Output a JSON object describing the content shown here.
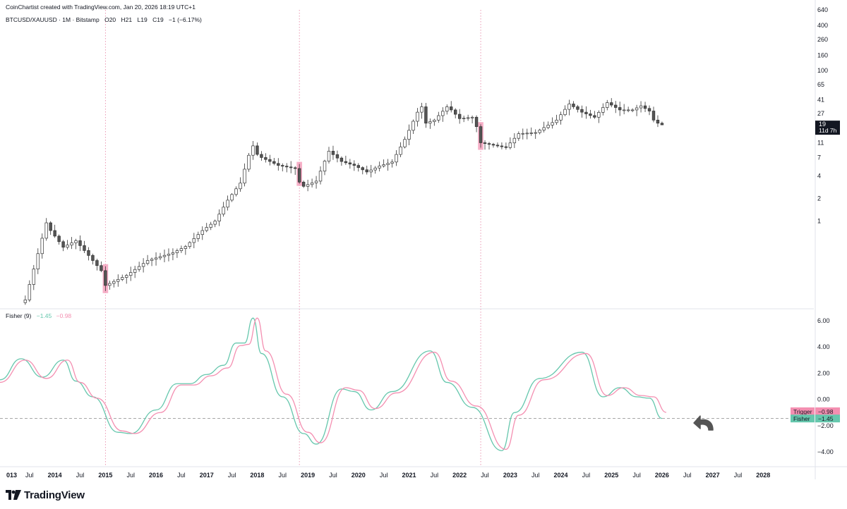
{
  "header": {
    "credit": "CoinChartist created with TradingView.com, Jan 20, 2026 18:19 UTC+1",
    "symbol": "BTCUSD/XAUUSD · 1M · Bitstamp",
    "open": "O20",
    "high": "H21",
    "low": "L19",
    "close": "C19",
    "change": "−1 (−6.17%)"
  },
  "indicator_header": {
    "name": "Fisher (9)",
    "fisher_value": "−1.45",
    "trigger_value": "−0.98"
  },
  "price_badge": {
    "price": "19",
    "countdown": "11d 7h",
    "bg": "#131722"
  },
  "labels": {
    "trigger": {
      "name": "Trigger",
      "value": "−0.98",
      "color": "#f48fb1"
    },
    "fisher": {
      "name": "Fisher",
      "value": "−1.45",
      "color": "#66c7ad"
    }
  },
  "brand": {
    "name": "TradingView"
  },
  "colors": {
    "bull": "#ffffff",
    "bear": "#555555",
    "outline": "#333333",
    "highlight": "#f48fb1",
    "fisher": "#66c7ad",
    "trigger": "#f48fb1",
    "vline": "#e57fa0"
  },
  "chart_data": [
    {
      "type": "candlestick",
      "title": "BTCUSD/XAUUSD · 1M · Bitstamp",
      "y_scale": "log",
      "y_ticks": [
        "640",
        "400",
        "260",
        "160",
        "100",
        "65",
        "41",
        "27",
        "19",
        "11",
        "7",
        "4",
        "2",
        "1"
      ],
      "x_ticks": [
        "013",
        "Jul",
        "2014",
        "Jul",
        "2015",
        "Jul",
        "2016",
        "Jul",
        "2017",
        "Jul",
        "2018",
        "Jul",
        "2019",
        "Jul",
        "2020",
        "Jul",
        "2021",
        "Jul",
        "2022",
        "Jul",
        "2023",
        "Jul",
        "2024",
        "Jul",
        "2025",
        "Jul",
        "2026",
        "Jul",
        "2027",
        "Jul",
        "2028"
      ],
      "x_range": [
        "2012-12",
        "2029-01"
      ],
      "ylim": [
        0.07,
        640
      ],
      "anchors": [
        [
          "2013-06",
          0.09
        ],
        [
          "2013-11",
          0.95
        ],
        [
          "2013-12",
          0.75
        ],
        [
          "2014-03",
          0.45
        ],
        [
          "2014-06",
          0.55
        ],
        [
          "2014-09",
          0.35
        ],
        [
          "2014-12",
          0.22
        ],
        [
          "2015-01",
          0.14
        ],
        [
          "2015-06",
          0.19
        ],
        [
          "2015-11",
          0.3
        ],
        [
          "2016-05",
          0.38
        ],
        [
          "2016-08",
          0.46
        ],
        [
          "2016-12",
          0.75
        ],
        [
          "2017-03",
          1.0
        ],
        [
          "2017-06",
          1.9
        ],
        [
          "2017-09",
          3.2
        ],
        [
          "2017-11",
          7.5
        ],
        [
          "2017-12",
          10.0
        ],
        [
          "2018-01",
          7.7
        ],
        [
          "2018-02",
          7.0
        ],
        [
          "2018-06",
          5.5
        ],
        [
          "2018-10",
          5.0
        ],
        [
          "2018-11",
          3.3
        ],
        [
          "2018-12",
          2.9
        ],
        [
          "2019-03",
          3.4
        ],
        [
          "2019-06",
          8.5
        ],
        [
          "2019-09",
          6.2
        ],
        [
          "2019-12",
          5.5
        ],
        [
          "2020-03",
          4.5
        ],
        [
          "2020-06",
          5.4
        ],
        [
          "2020-09",
          6.1
        ],
        [
          "2020-12",
          12.2
        ],
        [
          "2021-03",
          28.0
        ],
        [
          "2021-04",
          33.0
        ],
        [
          "2021-05",
          20.0
        ],
        [
          "2021-07",
          22.0
        ],
        [
          "2021-10",
          33.0
        ],
        [
          "2021-11",
          30.0
        ],
        [
          "2022-01",
          23.0
        ],
        [
          "2022-04",
          24.0
        ],
        [
          "2022-05",
          18.0
        ],
        [
          "2022-06",
          11.0
        ],
        [
          "2022-12",
          9.5
        ],
        [
          "2023-03",
          14.5
        ],
        [
          "2023-07",
          15.0
        ],
        [
          "2023-12",
          22.0
        ],
        [
          "2024-03",
          36.0
        ],
        [
          "2024-06",
          28.0
        ],
        [
          "2024-09",
          24.0
        ],
        [
          "2024-12",
          37.5
        ],
        [
          "2025-03",
          30.0
        ],
        [
          "2025-06",
          30.0
        ],
        [
          "2025-08",
          34.0
        ],
        [
          "2025-10",
          29.0
        ],
        [
          "2025-11",
          22.0
        ],
        [
          "2025-12",
          20.0
        ],
        [
          "2026-01",
          19.0
        ]
      ],
      "highlighted_months": [
        "2015-01",
        "2018-11",
        "2022-06"
      ],
      "last": {
        "open": 20,
        "high": 21,
        "low": 19,
        "close": 19
      }
    },
    {
      "type": "line",
      "title": "Fisher (9)",
      "y_ticks": [
        "6.00",
        "4.00",
        "2.00",
        "0.00",
        "−2.00",
        "−4.00"
      ],
      "ylim": [
        -4.8,
        6.8
      ],
      "reference_line": -1.45,
      "series": [
        {
          "name": "Fisher",
          "color": "#66c7ad",
          "points": [
            [
              "2012-12",
              1.5
            ],
            [
              "2013-05",
              3.1
            ],
            [
              "2013-10",
              1.7
            ],
            [
              "2014-03",
              3.0
            ],
            [
              "2014-06",
              1.4
            ],
            [
              "2014-10",
              0.2
            ],
            [
              "2015-04",
              -2.5
            ],
            [
              "2015-07",
              -2.6
            ],
            [
              "2016-01",
              -0.8
            ],
            [
              "2016-06",
              1.2
            ],
            [
              "2016-09",
              1.2
            ],
            [
              "2017-01",
              1.9
            ],
            [
              "2017-05",
              2.6
            ],
            [
              "2017-08",
              4.3
            ],
            [
              "2017-10",
              4.3
            ],
            [
              "2017-12",
              6.2
            ],
            [
              "2018-02",
              3.5
            ],
            [
              "2018-07",
              0.2
            ],
            [
              "2018-12",
              -2.6
            ],
            [
              "2019-03",
              -3.4
            ],
            [
              "2019-09",
              0.8
            ],
            [
              "2019-12",
              0.6
            ],
            [
              "2020-04",
              -0.8
            ],
            [
              "2020-09",
              0.6
            ],
            [
              "2021-06",
              3.7
            ],
            [
              "2021-10",
              1.3
            ],
            [
              "2022-04",
              -0.6
            ],
            [
              "2022-11",
              -3.9
            ],
            [
              "2023-02",
              -1.0
            ],
            [
              "2023-08",
              1.6
            ],
            [
              "2024-06",
              3.6
            ],
            [
              "2024-11",
              0.2
            ],
            [
              "2025-03",
              0.9
            ],
            [
              "2025-07",
              0.2
            ],
            [
              "2025-10",
              0.1
            ],
            [
              "2026-01",
              -1.45
            ]
          ]
        },
        {
          "name": "Trigger",
          "color": "#f48fb1",
          "points": [
            [
              "2012-12",
              1.3
            ],
            [
              "2013-06",
              3.0
            ],
            [
              "2013-11",
              1.6
            ],
            [
              "2014-04",
              3.0
            ],
            [
              "2014-07",
              1.3
            ],
            [
              "2014-11",
              0.1
            ],
            [
              "2015-05",
              -2.4
            ],
            [
              "2015-08",
              -2.6
            ],
            [
              "2016-02",
              -1.0
            ],
            [
              "2016-07",
              1.1
            ],
            [
              "2016-10",
              1.1
            ],
            [
              "2017-02",
              1.8
            ],
            [
              "2017-06",
              2.4
            ],
            [
              "2017-09",
              4.1
            ],
            [
              "2017-11",
              4.2
            ],
            [
              "2018-01",
              6.2
            ],
            [
              "2018-03",
              3.7
            ],
            [
              "2018-08",
              0.4
            ],
            [
              "2019-01",
              -2.5
            ],
            [
              "2019-04",
              -3.3
            ],
            [
              "2019-10",
              0.9
            ],
            [
              "2020-01",
              0.7
            ],
            [
              "2020-05",
              -0.7
            ],
            [
              "2020-10",
              0.5
            ],
            [
              "2021-07",
              3.6
            ],
            [
              "2021-11",
              1.4
            ],
            [
              "2022-05",
              -0.5
            ],
            [
              "2022-12",
              -3.8
            ],
            [
              "2023-03",
              -1.2
            ],
            [
              "2023-09",
              1.5
            ],
            [
              "2024-07",
              3.5
            ],
            [
              "2024-12",
              0.3
            ],
            [
              "2025-04",
              0.9
            ],
            [
              "2025-08",
              0.3
            ],
            [
              "2025-11",
              0.2
            ],
            [
              "2026-02",
              -0.98
            ]
          ]
        }
      ]
    }
  ]
}
